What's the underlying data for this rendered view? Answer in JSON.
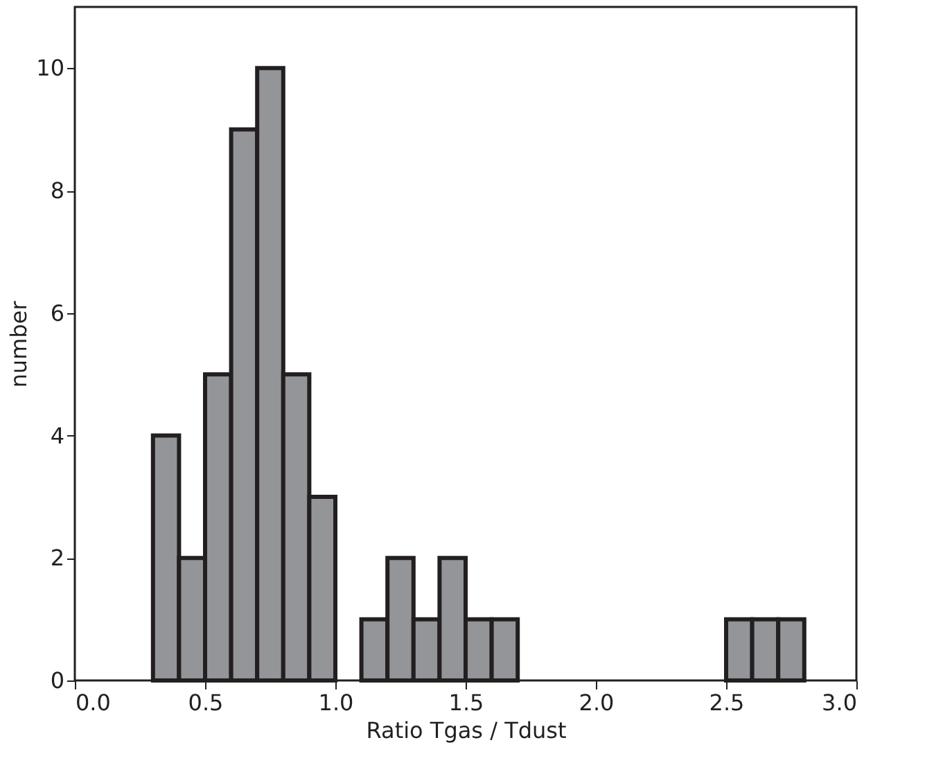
{
  "chart_data": {
    "type": "histogram",
    "xlabel": "Ratio Tgas / Tdust",
    "ylabel": "number",
    "bins": [
      0.3,
      0.4,
      0.5,
      0.6,
      0.7,
      0.8,
      0.9,
      1.0,
      1.1,
      1.2,
      1.3,
      1.4,
      1.5,
      1.6,
      1.7,
      1.8,
      1.9,
      2.0,
      2.1,
      2.2,
      2.3,
      2.4,
      2.5,
      2.6,
      2.7,
      2.8
    ],
    "values": [
      4,
      2,
      5,
      9,
      10,
      5,
      3,
      0,
      1,
      2,
      1,
      2,
      1,
      1,
      0,
      0,
      0,
      0,
      0,
      0,
      0,
      0,
      1,
      1,
      1
    ],
    "color": "#939598",
    "xlim": [
      0,
      3
    ],
    "xticks": [
      {
        "value": 0,
        "label": "0.0"
      },
      {
        "value": 0.5,
        "label": "0.5"
      },
      {
        "value": 1,
        "label": "1.0"
      },
      {
        "value": 1.5,
        "label": "1.5"
      },
      {
        "value": 2,
        "label": "2.0"
      },
      {
        "value": 2.5,
        "label": "2.5"
      },
      {
        "value": 3,
        "label": "3.0"
      }
    ],
    "ylim": [
      0,
      11
    ],
    "yticks": [
      0,
      2,
      4,
      6,
      8,
      10
    ]
  }
}
